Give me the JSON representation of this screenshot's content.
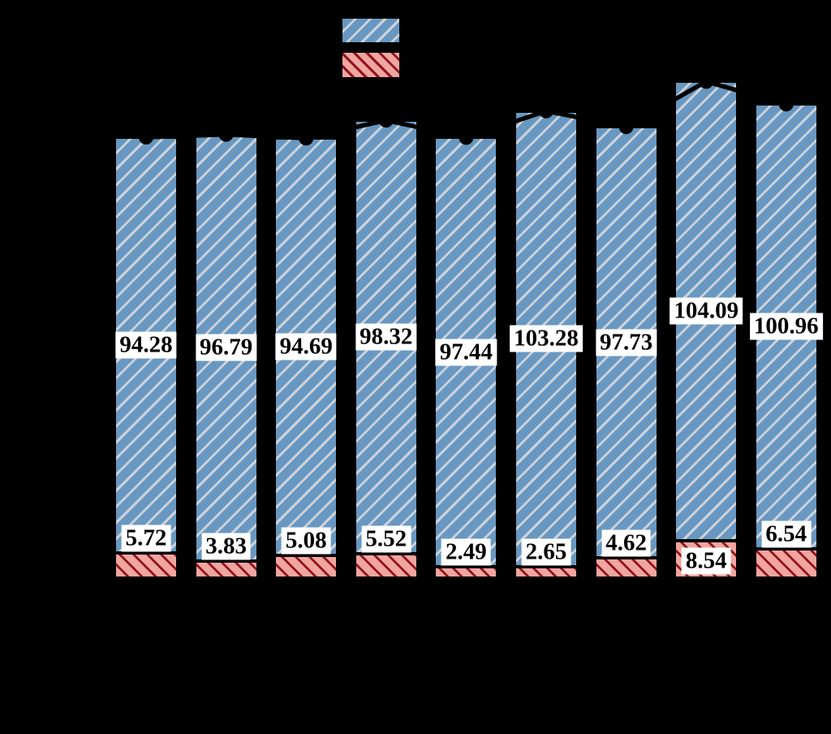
{
  "chart_data": {
    "type": "bar",
    "stacked": true,
    "orientation": "vertical",
    "background": "#000000",
    "n_bars": 9,
    "series": [
      {
        "name": "blue-hatched-segment",
        "fill": "#6898C1",
        "hatch": "/",
        "hatch_color": "#CDD2DB",
        "edge_color": "#000000",
        "values": [
          94.28,
          96.79,
          94.69,
          98.32,
          97.44,
          103.28,
          97.73,
          104.09,
          100.96
        ],
        "labels": [
          "94.28",
          "96.79",
          "94.69",
          "98.32",
          "97.44",
          "103.28",
          "97.73",
          "104.09",
          "100.96"
        ]
      },
      {
        "name": "pink-hatched-segment",
        "fill": "#F1A59F",
        "hatch": "\\",
        "hatch_color": "#901520",
        "edge_color": "#000000",
        "values": [
          5.72,
          3.83,
          5.08,
          5.52,
          2.49,
          2.65,
          4.62,
          8.54,
          6.54
        ],
        "labels": [
          "5.72",
          "3.83",
          "5.08",
          "5.52",
          "2.49",
          "2.65",
          "4.62",
          "8.54",
          "6.54"
        ]
      }
    ],
    "line_overlay": {
      "name": "totals-line",
      "color": "#000000",
      "marker": "circle",
      "values": [
        100.0,
        100.62,
        99.77,
        103.84,
        99.93,
        105.93,
        102.35,
        112.63,
        107.5
      ]
    },
    "value_label_style": {
      "background": "#FFFFFF",
      "text_color": "#000000"
    },
    "legend": {
      "position": "top-center",
      "entries": [
        {
          "name": "blue-hatched-segment",
          "swatch_fill": "#6898C1",
          "swatch_hatch": "/"
        },
        {
          "name": "pink-hatched-segment",
          "swatch_fill": "#F1A59F",
          "swatch_hatch": "\\"
        }
      ]
    }
  }
}
